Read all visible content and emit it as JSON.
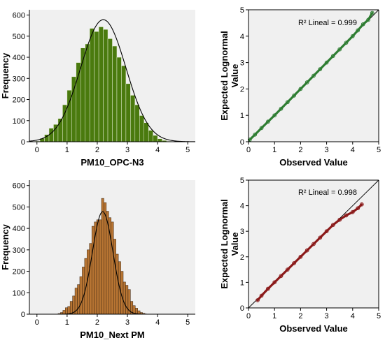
{
  "colors": {
    "panel_bg": "#f0f0f0",
    "hist_top": "#4a7a0e",
    "hist_bottom": "#b87533",
    "qq_top": "#2e7d32",
    "qq_bottom": "#8b1a1a",
    "normal_curve": "#000000"
  },
  "chart_data": [
    {
      "id": "hist_top",
      "type": "bar",
      "subtype": "histogram",
      "xlabel": "PM10_OPC-N3",
      "ylabel": "Frequency",
      "xlim": [
        -0.25,
        5.25
      ],
      "ylim": [
        0,
        625
      ],
      "xticks": [
        0,
        1,
        2,
        3,
        4,
        5
      ],
      "yticks": [
        0,
        100,
        200,
        300,
        400,
        500,
        600
      ],
      "grid": false,
      "bin_start": -0.05,
      "bin_width": 0.15,
      "values": [
        3,
        16,
        34,
        64,
        82,
        110,
        175,
        244,
        308,
        375,
        444,
        463,
        537,
        522,
        544,
        532,
        488,
        453,
        400,
        360,
        275,
        220,
        175,
        124,
        90,
        54,
        30,
        14,
        6,
        2
      ],
      "normal_curve": {
        "mean": 2.2,
        "sd": 0.75,
        "peak": 578
      }
    },
    {
      "id": "qq_top",
      "type": "scatter",
      "subtype": "qq-plot",
      "xlabel": "Observed Value",
      "ylabel": "Expected Lognormal Value",
      "xlim": [
        0,
        5
      ],
      "ylim": [
        0,
        5
      ],
      "xticks": [
        0,
        1,
        2,
        3,
        4,
        5
      ],
      "yticks": [
        0,
        1,
        2,
        3,
        4,
        5
      ],
      "annotation": "R² Lineal = 0.999",
      "reference_line": [
        [
          0,
          0
        ],
        [
          5,
          5
        ]
      ],
      "x": [
        0.05,
        0.25,
        0.5,
        0.75,
        1.0,
        1.25,
        1.5,
        1.75,
        2.0,
        2.25,
        2.5,
        2.75,
        3.0,
        3.25,
        3.5,
        3.75,
        4.0,
        4.2,
        4.4,
        4.6,
        4.75
      ],
      "y": [
        0.08,
        0.27,
        0.52,
        0.76,
        1.0,
        1.25,
        1.5,
        1.75,
        2.0,
        2.25,
        2.5,
        2.75,
        3.0,
        3.25,
        3.5,
        3.75,
        4.0,
        4.22,
        4.45,
        4.62,
        4.88
      ]
    },
    {
      "id": "hist_bottom",
      "type": "bar",
      "subtype": "histogram",
      "xlabel": "PM10_Next PM",
      "ylabel": "Frequency",
      "xlim": [
        -0.25,
        5.25
      ],
      "ylim": [
        0,
        625
      ],
      "xticks": [
        0,
        1,
        2,
        3,
        4,
        5
      ],
      "yticks": [
        0,
        100,
        200,
        300,
        400,
        500,
        600
      ],
      "grid": false,
      "bin_start": 0.7,
      "bin_width": 0.08,
      "values": [
        3,
        8,
        18,
        30,
        36,
        60,
        85,
        122,
        138,
        175,
        220,
        260,
        300,
        330,
        410,
        430,
        440,
        440,
        540,
        520,
        480,
        450,
        430,
        350,
        280,
        245,
        200,
        150,
        135,
        115,
        60,
        40,
        28,
        16,
        8,
        4
      ],
      "normal_curve": {
        "mean": 2.18,
        "sd": 0.34,
        "peak": 478
      }
    },
    {
      "id": "qq_bottom",
      "type": "scatter",
      "subtype": "qq-plot",
      "xlabel": "Observed Value",
      "ylabel": "Expected Lognormal Value",
      "xlim": [
        0,
        5
      ],
      "ylim": [
        0,
        5
      ],
      "xticks": [
        0,
        1,
        2,
        3,
        4,
        5
      ],
      "yticks": [
        0,
        1,
        2,
        3,
        4,
        5
      ],
      "annotation": "R² Lineal = 0.998",
      "reference_line": [
        [
          0,
          0
        ],
        [
          5,
          5
        ]
      ],
      "x": [
        0.35,
        0.5,
        0.75,
        1.0,
        1.25,
        1.5,
        1.75,
        2.0,
        2.25,
        2.5,
        2.75,
        3.0,
        3.25,
        3.5,
        3.75,
        4.0,
        4.2,
        4.35
      ],
      "y": [
        0.3,
        0.48,
        0.75,
        1.0,
        1.25,
        1.5,
        1.75,
        2.0,
        2.25,
        2.5,
        2.75,
        3.0,
        3.25,
        3.45,
        3.62,
        3.75,
        3.9,
        4.05
      ]
    }
  ]
}
